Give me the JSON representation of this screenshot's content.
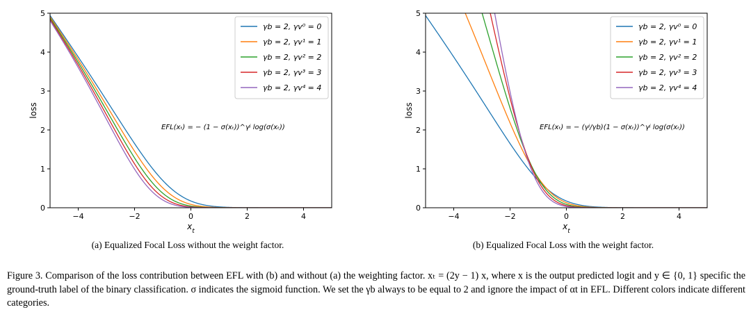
{
  "chart_data": [
    {
      "type": "line",
      "panel": "a",
      "xlabel": "x_t",
      "ylabel": "loss",
      "xlim": [
        -5,
        5
      ],
      "ylim": [
        0,
        5
      ],
      "xticks": [
        -4,
        -2,
        0,
        2,
        4
      ],
      "yticks": [
        0,
        1,
        2,
        3,
        4,
        5
      ],
      "legend_position": "top-right",
      "grid": false,
      "annotation": "EFL(xₜ) = − (1 − σ(xₜ))^γʲ log(σ(xₜ))",
      "formula": "loss = -(1 - sigmoid(x))^(gamma_b + gamma_v) * log(sigmoid(x))",
      "gamma_b": 2,
      "series": [
        {
          "name": "γb = 2, γv⁰ = 0",
          "gamma_v": 0,
          "color": "#1f77b4"
        },
        {
          "name": "γb = 2, γv¹ = 1",
          "gamma_v": 1,
          "color": "#ff7f0e"
        },
        {
          "name": "γb = 2, γv² = 2",
          "gamma_v": 2,
          "color": "#2ca02c"
        },
        {
          "name": "γb = 2, γv³ = 3",
          "gamma_v": 3,
          "color": "#d62728"
        },
        {
          "name": "γb = 2, γv⁴ = 4",
          "gamma_v": 4,
          "color": "#9467bd"
        }
      ]
    },
    {
      "type": "line",
      "panel": "b",
      "xlabel": "x_t",
      "ylabel": "loss",
      "xlim": [
        -5,
        5
      ],
      "ylim": [
        0,
        5
      ],
      "xticks": [
        -4,
        -2,
        0,
        2,
        4
      ],
      "yticks": [
        0,
        1,
        2,
        3,
        4,
        5
      ],
      "legend_position": "top-right",
      "grid": false,
      "annotation": "EFL(xₜ) = − (γʲ/γb)(1 − σ(xₜ))^γʲ log(σ(xₜ))",
      "formula": "loss = -((gamma_b + gamma_v) / gamma_b) * (1 - sigmoid(x))^(gamma_b + gamma_v) * log(sigmoid(x))",
      "gamma_b": 2,
      "series": [
        {
          "name": "γb = 2, γv⁰ = 0",
          "gamma_v": 0,
          "color": "#1f77b4"
        },
        {
          "name": "γb = 2, γv¹ = 1",
          "gamma_v": 1,
          "color": "#ff7f0e"
        },
        {
          "name": "γb = 2, γv² = 2",
          "gamma_v": 2,
          "color": "#2ca02c"
        },
        {
          "name": "γb = 2, γv³ = 3",
          "gamma_v": 3,
          "color": "#d62728"
        },
        {
          "name": "γb = 2, γv⁴ = 4",
          "gamma_v": 4,
          "color": "#9467bd"
        }
      ]
    }
  ],
  "captions": {
    "a": "(a) Equalized Focal Loss without the weight factor.",
    "b": "(b) Equalized Focal Loss with the weight factor.",
    "figure": "Figure 3. Comparison of the loss contribution between EFL with (b) and without (a) the weighting factor. xₜ = (2y − 1) x, where x is the output predicted logit and y ∈ {0, 1} specific the ground-truth label of the binary classification. σ indicates the sigmoid function. We set the γb always to be equal to 2 and ignore the impact of αt in EFL. Different colors indicate different categories."
  }
}
